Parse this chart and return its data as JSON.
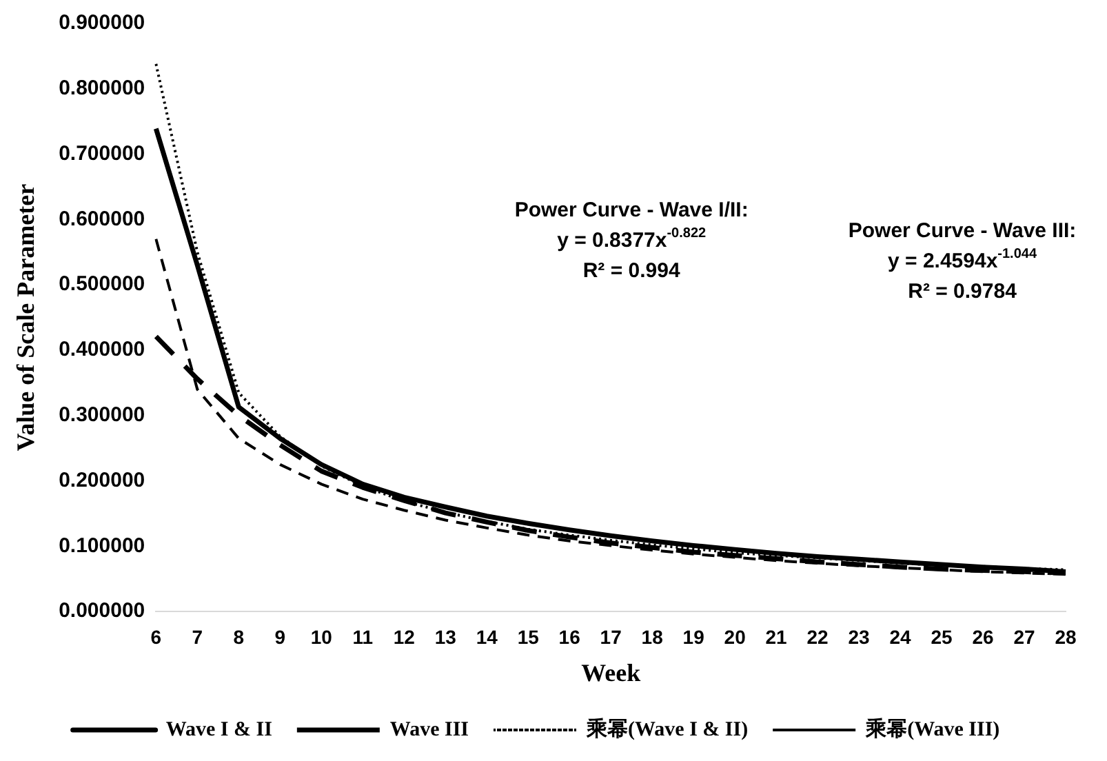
{
  "chart_data": {
    "type": "line",
    "xlabel": "Week",
    "ylabel": "Value of Scale Parameter",
    "categories": [
      "6",
      "7",
      "8",
      "9",
      "10",
      "11",
      "12",
      "13",
      "14",
      "15",
      "16",
      "17",
      "18",
      "19",
      "20",
      "21",
      "22",
      "23",
      "24",
      "25",
      "26",
      "27",
      "28"
    ],
    "series": [
      {
        "name": "Wave I & II",
        "color": "#000000",
        "line_style": "solid",
        "values": [
          0.739,
          0.53,
          0.313,
          0.265,
          0.225,
          0.195,
          0.175,
          0.16,
          0.146,
          0.135,
          0.125,
          0.116,
          0.108,
          0.101,
          0.095,
          0.089,
          0.084,
          0.08,
          0.076,
          0.072,
          0.068,
          0.065,
          0.061
        ]
      },
      {
        "name": "Wave III",
        "color": "#000000",
        "line_style": "dashed",
        "values": [
          0.421,
          0.356,
          0.3,
          0.255,
          0.215,
          0.19,
          0.17,
          0.151,
          0.137,
          0.124,
          0.114,
          0.105,
          0.098,
          0.091,
          0.086,
          0.081,
          0.076,
          0.072,
          0.068,
          0.065,
          0.063,
          0.061,
          0.059
        ]
      },
      {
        "name": "乘幂(Wave I & II)",
        "color": "#000000",
        "line_style": "dotted",
        "values": [
          0.838,
          0.55,
          0.335,
          0.268,
          0.223,
          0.192,
          0.169,
          0.152,
          0.138,
          0.126,
          0.117,
          0.109,
          0.102,
          0.096,
          0.09,
          0.086,
          0.082,
          0.078,
          0.074,
          0.071,
          0.069,
          0.066,
          0.064
        ]
      },
      {
        "name": "乘幂(Wave III)",
        "color": "#000000",
        "line_style": "dashed",
        "values": [
          0.57,
          0.34,
          0.265,
          0.225,
          0.195,
          0.172,
          0.155,
          0.14,
          0.128,
          0.117,
          0.108,
          0.101,
          0.094,
          0.088,
          0.083,
          0.078,
          0.074,
          0.07,
          0.067,
          0.064,
          0.061,
          0.059,
          0.057
        ]
      }
    ],
    "ylim": [
      0,
      0.9
    ],
    "yticks": [
      {
        "value": 0,
        "label": "0.000000"
      },
      {
        "value": 0.1,
        "label": "0.100000"
      },
      {
        "value": 0.2,
        "label": "0.200000"
      },
      {
        "value": 0.3,
        "label": "0.300000"
      },
      {
        "value": 0.4,
        "label": "0.400000"
      },
      {
        "value": 0.5,
        "label": "0.500000"
      },
      {
        "value": 0.6,
        "label": "0.600000"
      },
      {
        "value": 0.7,
        "label": "0.700000"
      },
      {
        "value": 0.8,
        "label": "0.800000"
      },
      {
        "value": 0.9,
        "label": "0.900000"
      }
    ],
    "grid": false,
    "legend": "bottom",
    "marker": "none",
    "annotations": [
      "Power Curve - Wave I/II:\ny = 0.8377x$^{-0.822}$\nR² = 0.994",
      "Power Curve - Wave III:\ny = 2.4594x$^{-1.044}$\nR² = 0.9784"
    ]
  }
}
